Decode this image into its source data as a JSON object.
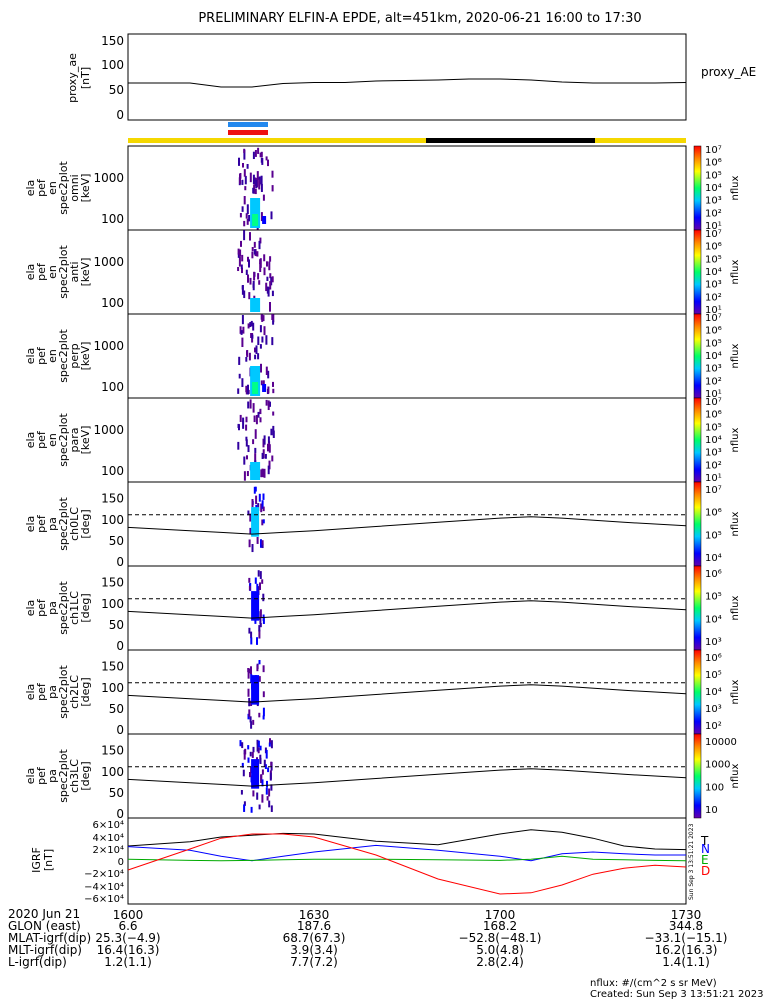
{
  "title": "PRELIMINARY ELFIN-A EPDE, alt=451km, 2020-06-21 16:00 to 17:30",
  "proxy_ae": {
    "ylabel": [
      "proxy_ae",
      "[nT]"
    ],
    "legend": "proxy_AE",
    "yticks": [
      "150",
      "100",
      "50",
      "0"
    ],
    "chart_data": {
      "type": "line",
      "x_minutes": [
        0,
        10,
        15,
        20,
        25,
        30,
        35,
        40,
        50,
        55,
        60,
        65,
        70,
        75,
        80,
        85,
        90
      ],
      "values": [
        72,
        72,
        64,
        64,
        71,
        73,
        73,
        76,
        78,
        80,
        80,
        78,
        74,
        72,
        72,
        72,
        73
      ],
      "ylim": [
        0,
        150
      ]
    }
  },
  "energy_panels": [
    {
      "ylabel": [
        "ela",
        "pef",
        "en",
        "spec2plot",
        "omni",
        "[keV]"
      ],
      "yticks": [
        "1000",
        "100"
      ],
      "cb_label": "nflux",
      "cb_ticks": [
        "10⁷",
        "10⁶",
        "10⁵",
        "10⁴",
        "10³",
        "10²",
        "10¹"
      ]
    },
    {
      "ylabel": [
        "ela",
        "pef",
        "en",
        "spec2plot",
        "anti",
        "[keV]"
      ],
      "yticks": [
        "1000",
        "100"
      ],
      "cb_label": "nflux",
      "cb_ticks": [
        "10⁷",
        "10⁶",
        "10⁵",
        "10⁴",
        "10³",
        "10²",
        "10¹"
      ]
    },
    {
      "ylabel": [
        "ela",
        "pef",
        "en",
        "spec2plot",
        "perp",
        "[keV]"
      ],
      "yticks": [
        "1000",
        "100"
      ],
      "cb_label": "nflux",
      "cb_ticks": [
        "10⁷",
        "10⁶",
        "10⁵",
        "10⁴",
        "10³",
        "10²",
        "10¹"
      ]
    },
    {
      "ylabel": [
        "ela",
        "pef",
        "en",
        "spec2plot",
        "para",
        "[keV]"
      ],
      "yticks": [
        "1000",
        "100"
      ],
      "cb_label": "nflux",
      "cb_ticks": [
        "10⁷",
        "10⁶",
        "10⁵",
        "10⁴",
        "10³",
        "10²",
        "10¹"
      ]
    }
  ],
  "pa_panels": [
    {
      "ylabel": [
        "ela",
        "pef",
        "pa",
        "spec2plot",
        "ch0LC",
        "[deg]"
      ],
      "yticks": [
        "150",
        "100",
        "50",
        "0"
      ],
      "cb_label": "nflux",
      "cb_ticks": [
        "10⁷",
        "10⁶",
        "10⁵",
        "10⁴"
      ]
    },
    {
      "ylabel": [
        "ela",
        "pef",
        "pa",
        "spec2plot",
        "ch1LC",
        "[deg]"
      ],
      "yticks": [
        "150",
        "100",
        "50",
        "0"
      ],
      "cb_label": "nflux",
      "cb_ticks": [
        "10⁶",
        "10⁵",
        "10⁴",
        "10³"
      ]
    },
    {
      "ylabel": [
        "ela",
        "pef",
        "pa",
        "spec2plot",
        "ch2LC",
        "[deg]"
      ],
      "yticks": [
        "150",
        "100",
        "50",
        "0"
      ],
      "cb_label": "nflux",
      "cb_ticks": [
        "10⁶",
        "10⁵",
        "10⁴",
        "10³",
        "10²"
      ]
    },
    {
      "ylabel": [
        "ela",
        "pef",
        "pa",
        "spec2plot",
        "ch3LC",
        "[deg]"
      ],
      "yticks": [
        "150",
        "100",
        "50",
        "0"
      ],
      "cb_label": "nflux",
      "cb_ticks": [
        "10000",
        "1000",
        "100",
        "10"
      ]
    }
  ],
  "pa_curves": {
    "x_minutes": [
      0,
      10,
      15,
      20,
      25,
      30,
      40,
      50,
      60,
      65,
      70,
      80,
      90
    ],
    "solid_deg": [
      82,
      74,
      70,
      66,
      70,
      74,
      84,
      94,
      104,
      107,
      104,
      94,
      86
    ],
    "dashed_deg": 112
  },
  "igrf": {
    "ylabel": [
      "IGRF",
      "[nT]"
    ],
    "yticks": [
      "6×10⁴",
      "4×10⁴",
      "2×10⁴",
      "0",
      "−2×10⁴",
      "−4×10⁴",
      "−6×10⁴"
    ],
    "legend": [
      "T",
      "N",
      "E",
      "D"
    ],
    "legend_colors": [
      "#000000",
      "#0000ff",
      "#00aa00",
      "#ff0000"
    ],
    "side_note": "Sun Sep 3 13:51:21 2023",
    "chart_data": {
      "type": "line",
      "x_minutes": [
        0,
        10,
        15,
        20,
        25,
        30,
        40,
        50,
        60,
        65,
        70,
        75,
        80,
        85,
        90
      ],
      "series": [
        {
          "name": "T",
          "values": [
            25000,
            32000,
            40000,
            43000,
            46000,
            45000,
            33000,
            27000,
            45000,
            52000,
            48000,
            38000,
            25000,
            20000,
            19000
          ]
        },
        {
          "name": "N",
          "values": [
            24000,
            18000,
            8000,
            500,
            8000,
            15000,
            26000,
            18000,
            8000,
            500,
            12000,
            15000,
            12000,
            10000,
            10000
          ]
        },
        {
          "name": "E",
          "values": [
            3000,
            1000,
            500,
            1000,
            2000,
            3000,
            3000,
            2000,
            1000,
            3000,
            8000,
            3000,
            2000,
            1000,
            500
          ]
        },
        {
          "name": "D",
          "values": [
            -15000,
            20000,
            38000,
            45000,
            45000,
            40000,
            10000,
            -30000,
            -55000,
            -53000,
            -40000,
            -22000,
            -12000,
            -7000,
            -10000
          ]
        }
      ],
      "ylim": [
        -60000,
        60000
      ]
    }
  },
  "x_tick_labels": [
    "1600",
    "1630",
    "1700",
    "1730"
  ],
  "footer_rows": [
    {
      "label": "2020 Jun 21",
      "values": [
        "",
        "",
        "",
        ""
      ]
    },
    {
      "label": "GLON (east)",
      "values": [
        "6.6",
        "187.6",
        "168.2",
        "344.8"
      ]
    },
    {
      "label": "MLAT-igrf(dip)",
      "values": [
        "25.3(−4.9)",
        "68.7(67.3)",
        "−52.8(−48.1)",
        "−33.1(−15.1)"
      ]
    },
    {
      "label": "MLT-igrf(dip)",
      "values": [
        "16.4(16.3)",
        "3.9(3.4)",
        "5.0(4.8)",
        "16.2(16.3)"
      ]
    },
    {
      "label": "L-igrf(dip)",
      "values": [
        "1.2(1.1)",
        "7.7(7.2)",
        "2.8(2.4)",
        "1.4(1.1)"
      ]
    }
  ],
  "footnote_units": "nflux: #/(cm^2 s sr MeV)",
  "footnote_created": "Created: Sun Sep  3 13:51:21 2023",
  "colors": {
    "bar_yellow": "#f5d800",
    "bar_black": "#000000",
    "flag_blue": "#2288ee",
    "flag_red": "#ee1111"
  }
}
